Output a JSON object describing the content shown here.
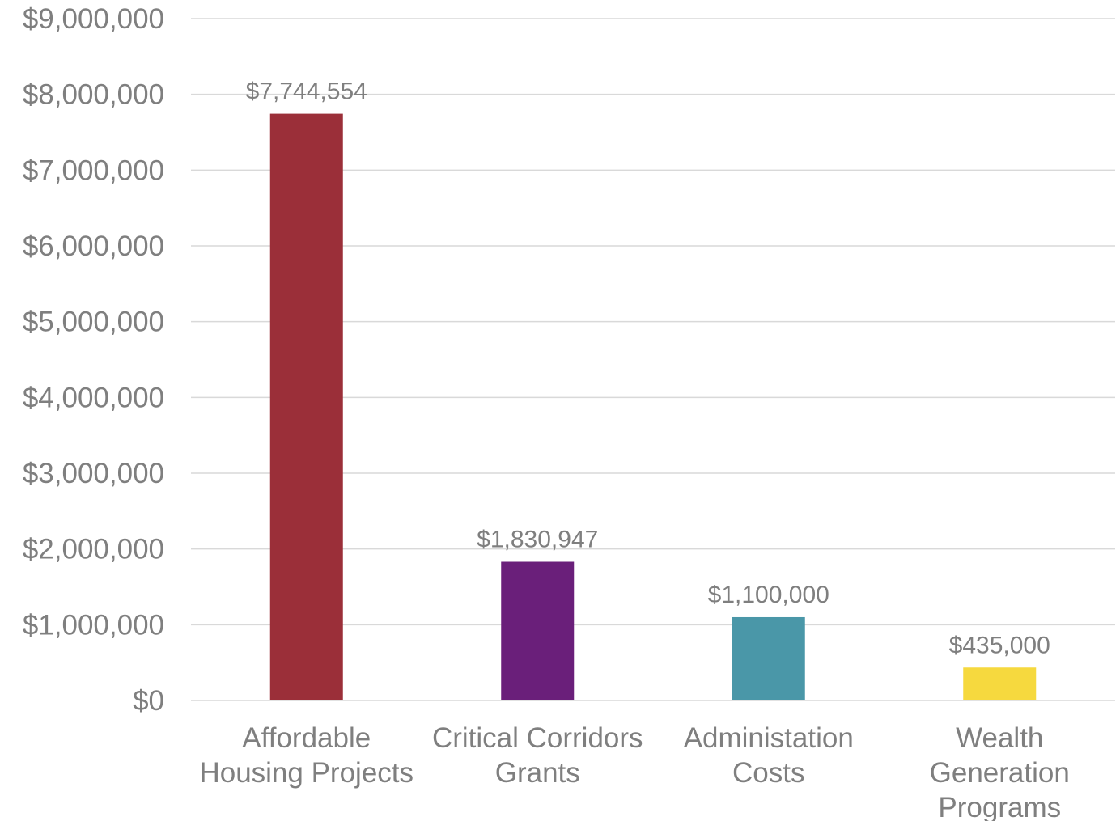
{
  "chart_data": {
    "type": "bar",
    "title": "",
    "xlabel": "",
    "ylabel": "",
    "categories": [
      [
        "Affordable",
        "Housing Projects"
      ],
      [
        "Critical Corridors",
        "Grants"
      ],
      [
        "Administation",
        "Costs"
      ],
      [
        "Wealth",
        "Generation",
        "Programs"
      ]
    ],
    "values": [
      7744554,
      1830947,
      1100000,
      435000
    ],
    "data_labels": [
      "$7,744,554",
      "$1,830,947",
      "$1,100,000",
      "$435,000"
    ],
    "colors": [
      "#9b2f39",
      "#6a1f7a",
      "#4a97a8",
      "#f6d93e"
    ],
    "ylim": [
      0,
      9000000
    ],
    "yticks": [
      0,
      1000000,
      2000000,
      3000000,
      4000000,
      5000000,
      6000000,
      7000000,
      8000000,
      9000000
    ],
    "ytick_labels": [
      "$0",
      "$1,000,000",
      "$2,000,000",
      "$3,000,000",
      "$4,000,000",
      "$5,000,000",
      "$6,000,000",
      "$7,000,000",
      "$8,000,000",
      "$9,000,000"
    ],
    "grid": true,
    "legend": "none"
  }
}
